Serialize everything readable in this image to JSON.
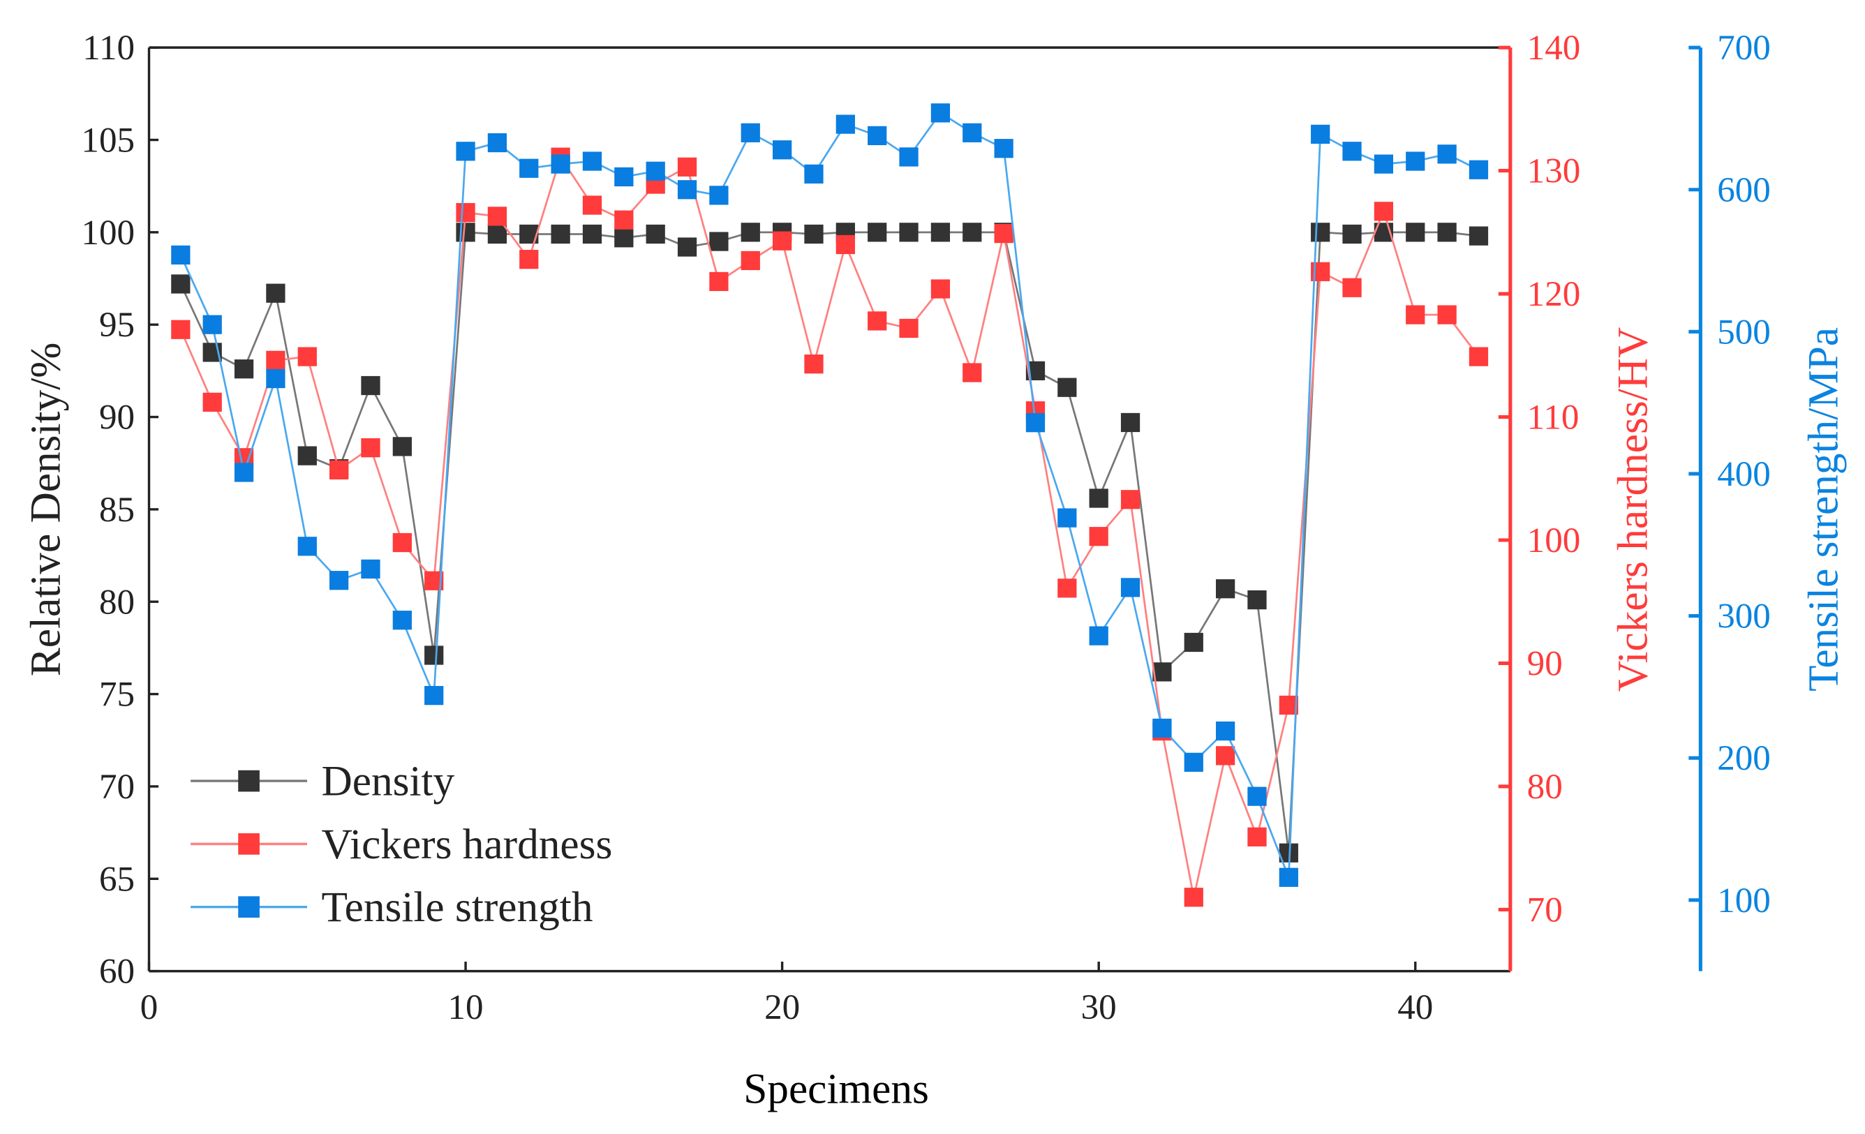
{
  "chart_data": {
    "type": "line",
    "xlabel": "Specimens",
    "x": [
      1,
      2,
      3,
      4,
      5,
      6,
      7,
      8,
      9,
      10,
      11,
      12,
      13,
      14,
      15,
      16,
      17,
      18,
      19,
      20,
      21,
      22,
      23,
      24,
      25,
      26,
      27,
      28,
      29,
      30,
      31,
      32,
      33,
      34,
      35,
      36,
      37,
      38,
      39,
      40,
      41,
      42
    ],
    "xlim": [
      0,
      43
    ],
    "xticks": [
      "0",
      "10",
      "20",
      "30",
      "40"
    ],
    "xtick_values": [
      0,
      10,
      20,
      30,
      40
    ],
    "axes": [
      {
        "id": "left",
        "label": "Relative Density/%",
        "ylim": [
          60,
          110
        ],
        "ticks": [
          60,
          65,
          70,
          75,
          80,
          85,
          90,
          95,
          100,
          105,
          110
        ],
        "color": "#222222"
      },
      {
        "id": "right1",
        "label": "Vickers hardness/HV",
        "ylim": [
          65,
          140
        ],
        "ticks": [
          70,
          80,
          90,
          100,
          110,
          120,
          130,
          140
        ],
        "color": "#ff3b3b"
      },
      {
        "id": "right2",
        "label": "Tensile strength/MPa",
        "ylim": [
          50,
          700
        ],
        "ticks": [
          100,
          200,
          300,
          400,
          500,
          600,
          700
        ],
        "color": "#0a84e0"
      }
    ],
    "series": [
      {
        "name": "Density",
        "axis": "left",
        "color": "#333333",
        "line": "#777777",
        "values": [
          97.2,
          93.5,
          92.6,
          96.7,
          87.9,
          87.2,
          91.7,
          88.4,
          77.1,
          100,
          99.9,
          99.9,
          99.9,
          99.9,
          99.7,
          99.9,
          99.2,
          99.5,
          100,
          100,
          99.9,
          100,
          100,
          100,
          100,
          100,
          100,
          92.5,
          91.6,
          85.6,
          89.7,
          76.2,
          77.8,
          80.7,
          80.1,
          66.4,
          100,
          99.9,
          100,
          100,
          100,
          99.8
        ]
      },
      {
        "name": "Vickers hardness",
        "axis": "right1",
        "color": "#ff3b3b",
        "line": "#ff8080",
        "values": [
          117.1,
          111.2,
          106.7,
          114.6,
          114.9,
          105.7,
          107.5,
          99.8,
          96.7,
          126.6,
          126.3,
          122.8,
          131.1,
          127.2,
          126.0,
          128.9,
          130.3,
          121.0,
          122.7,
          124.3,
          114.3,
          124.0,
          117.8,
          117.2,
          120.4,
          113.6,
          124.9,
          110.5,
          96.1,
          100.3,
          103.3,
          84.5,
          71.0,
          82.5,
          75.9,
          86.6,
          121.8,
          120.5,
          126.7,
          118.3,
          118.3,
          114.9
        ]
      },
      {
        "name": "Tensile strength",
        "axis": "right2",
        "color": "#0a7de0",
        "line": "#4aa8f0",
        "values": [
          554,
          505,
          401,
          467,
          349,
          325,
          333,
          297,
          244,
          627,
          633,
          615,
          618,
          620,
          609,
          613,
          600,
          596,
          640,
          628,
          611,
          646,
          638,
          623,
          654,
          640,
          629,
          436,
          369,
          286,
          320,
          221,
          197,
          219,
          173,
          116,
          639,
          627,
          618,
          620,
          625,
          614
        ]
      }
    ],
    "legend_position": "bottom-left",
    "grid": false
  }
}
